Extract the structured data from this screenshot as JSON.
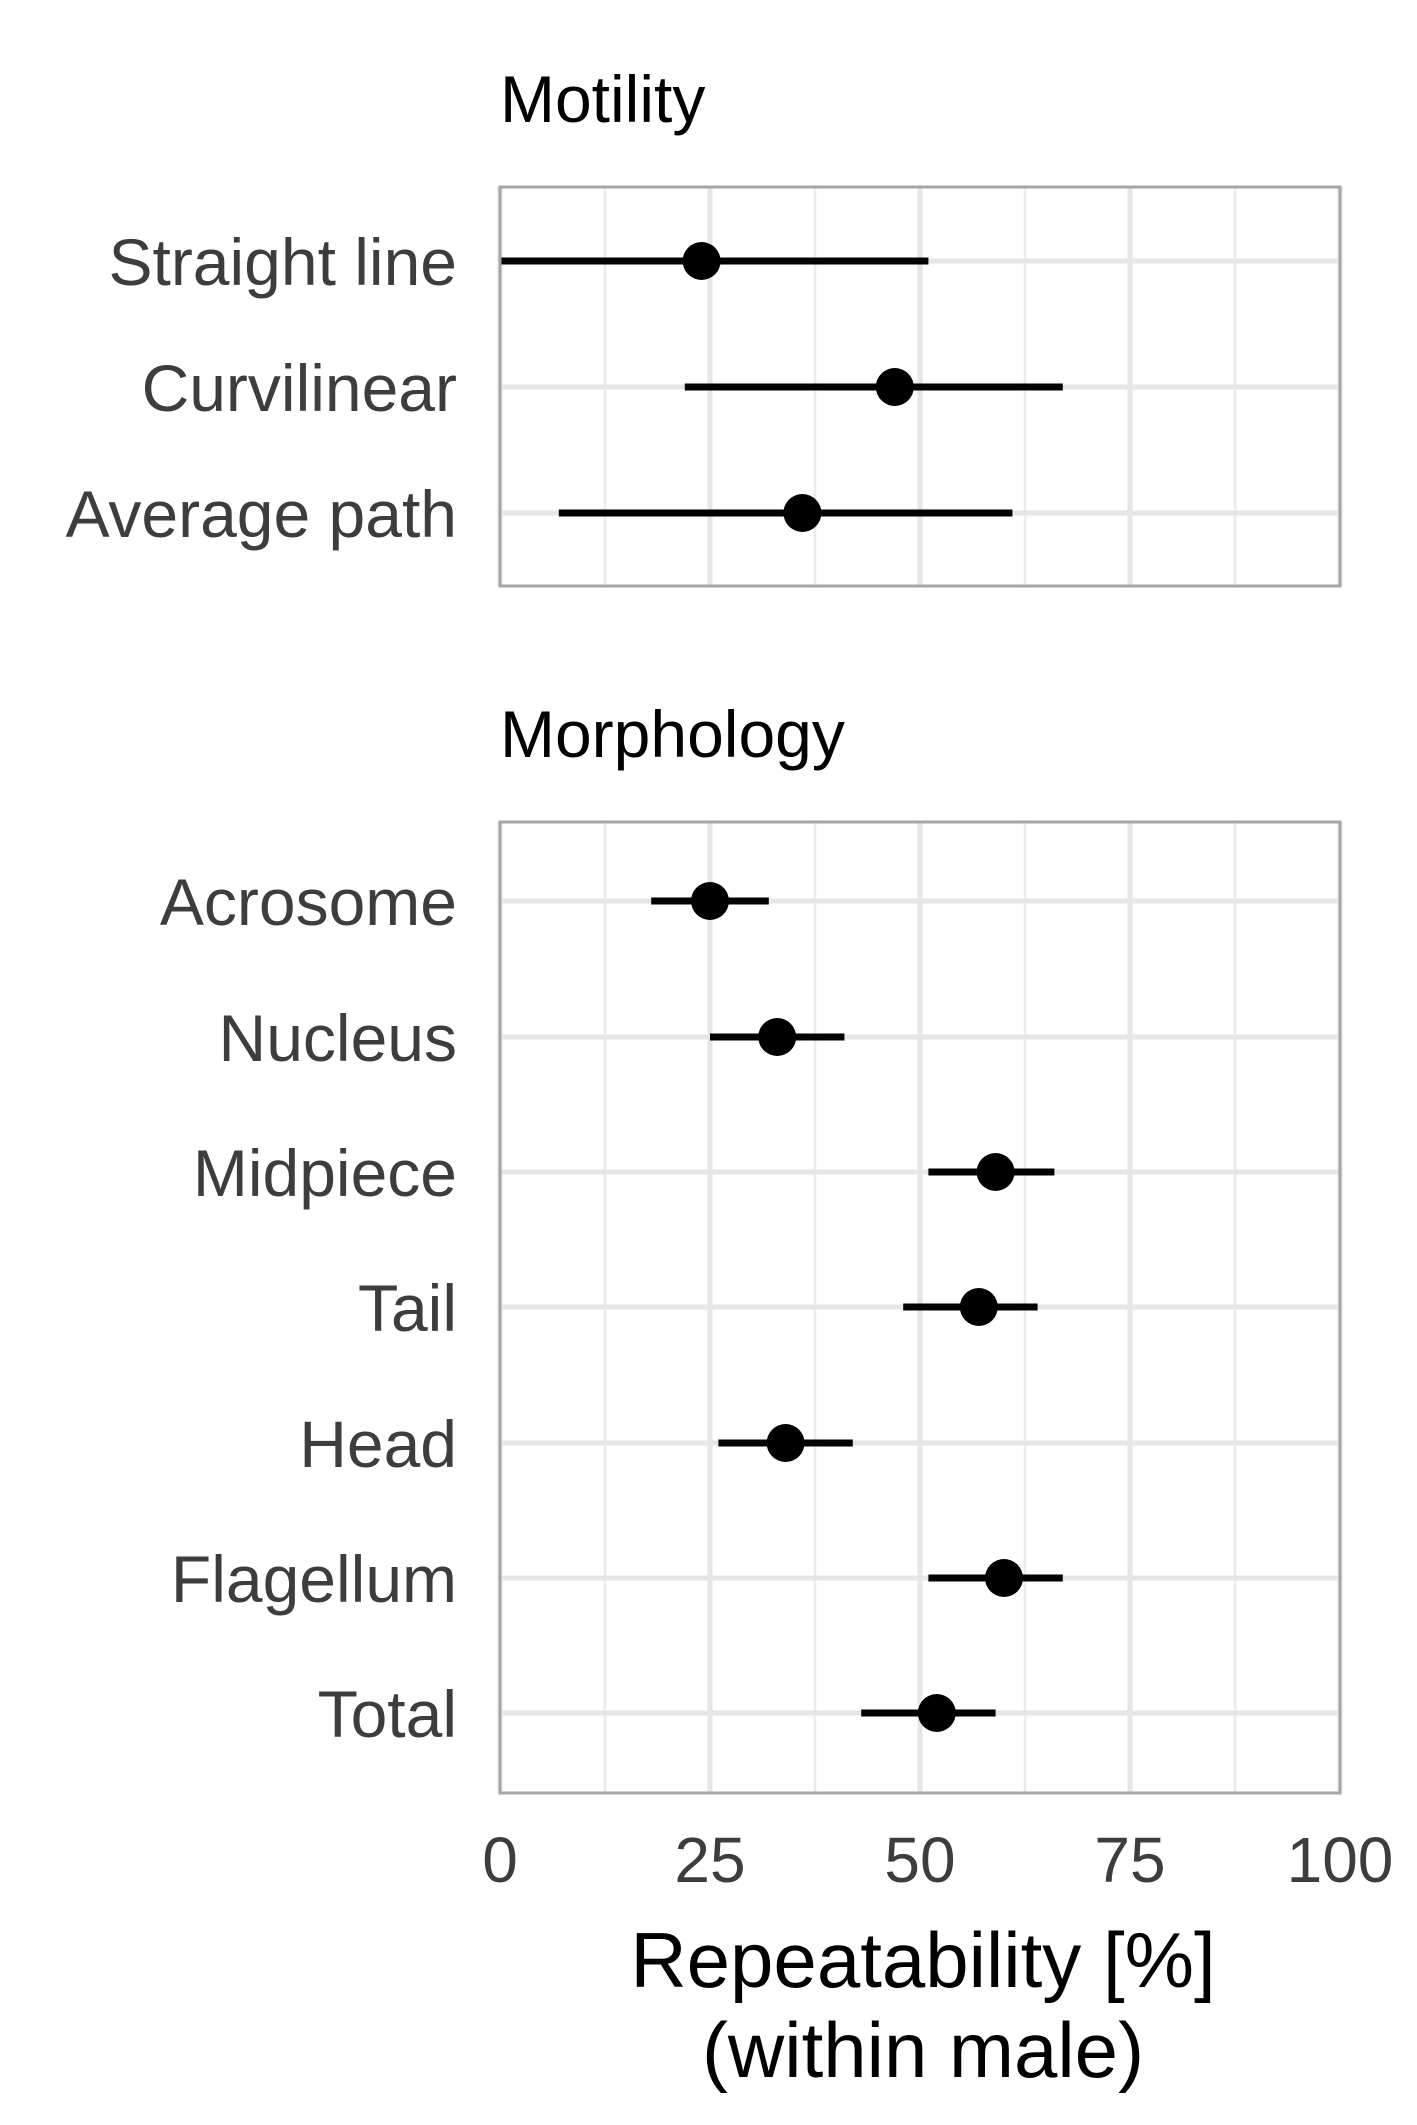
{
  "chart_data": {
    "type": "scatter",
    "xlabel_lines": [
      "Repeatability [%]",
      "(within male)"
    ],
    "xlim": [
      0,
      100
    ],
    "x_ticks": [
      "0",
      "25",
      "50",
      "75",
      "100"
    ],
    "x_tick_values": [
      0,
      25,
      50,
      75,
      100
    ],
    "x_minor_values": [
      12.5,
      37.5,
      62.5,
      87.5
    ],
    "grid": true,
    "panels": [
      {
        "title": "Motility",
        "categories": [
          {
            "label": "Straight line",
            "estimate": 24,
            "lower": 0,
            "upper": 51
          },
          {
            "label": "Curvilinear",
            "estimate": 47,
            "lower": 22,
            "upper": 67
          },
          {
            "label": "Average path",
            "estimate": 36,
            "lower": 7,
            "upper": 61
          }
        ]
      },
      {
        "title": "Morphology",
        "categories": [
          {
            "label": "Acrosome",
            "estimate": 25,
            "lower": 18,
            "upper": 32
          },
          {
            "label": "Nucleus",
            "estimate": 33,
            "lower": 25,
            "upper": 41
          },
          {
            "label": "Midpiece",
            "estimate": 59,
            "lower": 51,
            "upper": 66
          },
          {
            "label": "Tail",
            "estimate": 57,
            "lower": 48,
            "upper": 64
          },
          {
            "label": "Head",
            "estimate": 34,
            "lower": 26,
            "upper": 42
          },
          {
            "label": "Flagellum",
            "estimate": 60,
            "lower": 51,
            "upper": 67
          },
          {
            "label": "Total",
            "estimate": 52,
            "lower": 43,
            "upper": 59
          }
        ]
      }
    ]
  }
}
